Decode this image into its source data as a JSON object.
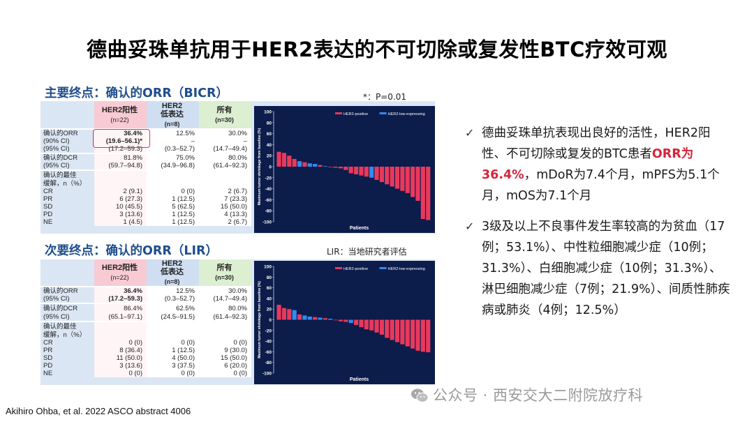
{
  "title": "德曲妥珠单抗用于HER2表达的不可切除或复发性BTC疗效可观",
  "primary": {
    "heading": "主要终点：确认的ORR（BICR）",
    "note": "*：P=0.01",
    "columns": [
      {
        "name": "HER2阳性",
        "n": "(n=22)"
      },
      {
        "name": "HER2\n低表达",
        "n": "(n=8)"
      },
      {
        "name": "所有",
        "n": "(n=30)"
      }
    ],
    "orr_label": "确认的ORR",
    "orr_ci90": "(90% CI)",
    "orr_ci95": "(95% CI)",
    "orr_pos": "36.4%",
    "orr_pos_ci90": "(19.6–56.1)*",
    "orr_pos_ci95": "(17.2–59.3)",
    "orr_low": "12.5%",
    "orr_low_ci90": "–",
    "orr_low_ci95": "(0.3–52.7)",
    "orr_all": "30.0%",
    "orr_all_ci90": "–",
    "orr_all_ci95": "(14.7–49.4)",
    "dcr_label": "确认的DCR",
    "dcr_ci": "(95% CI)",
    "dcr_pos": "81.8%",
    "dcr_pos_ci": "(59.7–94.8)",
    "dcr_low": "75.0%",
    "dcr_low_ci": "(34.9–96.8)",
    "dcr_all": "80.0%",
    "dcr_all_ci": "(61.4–92.3)",
    "best_label_1": "确认的最佳",
    "best_label_2": "缓解，n（%）",
    "best_rows": [
      {
        "label": "CR",
        "pos": "2 (9.1)",
        "low": "0 (0)",
        "all": "2 (6.7)"
      },
      {
        "label": "PR",
        "pos": "6 (27.3)",
        "low": "1 (12.5)",
        "all": "7 (23.3)"
      },
      {
        "label": "SD",
        "pos": "10 (45.5)",
        "low": "5 (62.5)",
        "all": "15 (50.0)"
      },
      {
        "label": "PD",
        "pos": "3 (13.6)",
        "low": "1 (12.5)",
        "all": "4 (13.3)"
      },
      {
        "label": "NE",
        "pos": "1 (4.5)",
        "low": "1 (12.5)",
        "all": "2 (6.7)"
      }
    ]
  },
  "secondary": {
    "heading": "次要终点：确认的ORR（LIR）",
    "note": "LIR：当地研究者评估",
    "columns": [
      {
        "name": "HER2阳性",
        "n": "(n=22)"
      },
      {
        "name": "HER2\n低表达",
        "n": "(n=8)"
      },
      {
        "name": "所有",
        "n": "(n=30)"
      }
    ],
    "orr_label": "确认的ORR",
    "orr_ci95": "(95% CI)",
    "orr_pos": "36.4%",
    "orr_pos_ci95": "(17.2–59.3)",
    "orr_low": "12.5%",
    "orr_low_ci95": "(0.3–52.7)",
    "orr_all": "30.0%",
    "orr_all_ci95": "(14.7–49.4)",
    "dcr_label": "确认的DCR",
    "dcr_ci": "(95% CI)",
    "dcr_pos": "86.4%",
    "dcr_pos_ci": "(65.1–97.1)",
    "dcr_low": "62.5%",
    "dcr_low_ci": "(24.5–91.5)",
    "dcr_all": "80.0%",
    "dcr_all_ci": "(61.4–92.3)",
    "best_label_1": "确认的最佳",
    "best_label_2": "缓解，n（%）",
    "best_rows": [
      {
        "label": "CR",
        "pos": "0 (0)",
        "low": "0 (0)",
        "all": "0 (0)"
      },
      {
        "label": "PR",
        "pos": "8 (36.4)",
        "low": "1 (12.5)",
        "all": "9 (30.0)"
      },
      {
        "label": "SD",
        "pos": "11 (50.0)",
        "low": "4 (50.0)",
        "all": "15 (50.0)"
      },
      {
        "label": "PD",
        "pos": "3 (13.6)",
        "low": "3 (37.5)",
        "all": "6 (20.0)"
      },
      {
        "label": "NE",
        "pos": "0 (0)",
        "low": "0 (0)",
        "all": "0 (0)"
      }
    ]
  },
  "chart_data": [
    {
      "type": "bar",
      "title": "",
      "xlabel": "Patients",
      "ylabel": "Maximum tumor shrinkage from baseline (%)",
      "ylim": [
        -100,
        100
      ],
      "yticks": [
        100,
        80,
        60,
        40,
        20,
        0,
        -20,
        -40,
        -60,
        -80,
        -100
      ],
      "legend": [
        "HER2-positive",
        "HER2-low-expressing"
      ],
      "legend_position": "top",
      "colors": {
        "HER2-positive": "#e8395c",
        "HER2-low-expressing": "#2f8cf0"
      },
      "values": [
        27,
        25,
        20,
        14,
        10,
        8,
        6,
        5,
        3,
        1,
        0,
        -2,
        -3,
        -6,
        -12,
        -14,
        -16,
        -18,
        -20,
        -24,
        -28,
        -32,
        -36,
        -40,
        -44,
        -48,
        -55,
        -62,
        -95,
        -97
      ],
      "groups": [
        "HER2-positive",
        "HER2-positive",
        "HER2-positive",
        "HER2-positive",
        "HER2-low-expressing",
        "HER2-positive",
        "HER2-low-expressing",
        "HER2-low-expressing",
        "HER2-positive",
        "HER2-low-expressing",
        "HER2-positive",
        "HER2-positive",
        "HER2-positive",
        "HER2-positive",
        "HER2-positive",
        "HER2-positive",
        "HER2-positive",
        "HER2-positive",
        "HER2-low-expressing",
        "HER2-positive",
        "HER2-positive",
        "HER2-positive",
        "HER2-positive",
        "HER2-positive",
        "HER2-positive",
        "HER2-positive",
        "HER2-positive",
        "HER2-positive",
        "HER2-positive",
        "HER2-positive"
      ]
    },
    {
      "type": "bar",
      "title": "",
      "xlabel": "Patients",
      "ylabel": "Maximum tumor shrinkage from baseline (%)",
      "ylim": [
        -100,
        100
      ],
      "yticks": [
        100,
        80,
        60,
        40,
        20,
        0,
        -20,
        -40,
        -60,
        -80,
        -100
      ],
      "legend": [
        "HER2-positive",
        "HER2-low-expressing"
      ],
      "legend_position": "top",
      "colors": {
        "HER2-positive": "#e8395c",
        "HER2-low-expressing": "#2f8cf0"
      },
      "values": [
        28,
        22,
        20,
        18,
        10,
        8,
        6,
        5,
        4,
        3,
        2,
        0,
        -3,
        -4,
        -6,
        -10,
        -14,
        -18,
        -20,
        -24,
        -28,
        -34,
        -38,
        -42,
        -46,
        -50,
        -54,
        -58,
        -60,
        -61
      ],
      "groups": [
        "HER2-positive",
        "HER2-positive",
        "HER2-positive",
        "HER2-low-expressing",
        "HER2-positive",
        "HER2-low-expressing",
        "HER2-low-expressing",
        "HER2-positive",
        "HER2-low-expressing",
        "HER2-positive",
        "HER2-low-expressing",
        "HER2-positive",
        "HER2-positive",
        "HER2-positive",
        "HER2-low-expressing",
        "HER2-positive",
        "HER2-positive",
        "HER2-positive",
        "HER2-positive",
        "HER2-positive",
        "HER2-positive",
        "HER2-positive",
        "HER2-positive",
        "HER2-positive",
        "HER2-positive",
        "HER2-positive",
        "HER2-positive",
        "HER2-positive",
        "HER2-positive",
        "HER2-positive"
      ]
    }
  ],
  "bullets": [
    {
      "pre": "德曲妥珠单抗表现出良好的活性，HER2阳性、不可切除或复发的BTC患者",
      "highlight": "ORR为36.4%",
      "post": "，mDoR为7.4个月，mPFS为5.1个月，mOS为7.1个月"
    },
    {
      "pre": "3级及以上不良事件发生率较高的为贫血（17例；53.1%）、中性粒细胞减少症（10例；31.3%）、白细胞减少症（10例；31.3%）、淋巴细胞减少症（7例；21.9%）、间质性肺疾病或肺炎（4例；12.5%）",
      "highlight": "",
      "post": ""
    }
  ],
  "footer": "Akihiro Ohba, et al. 2022 ASCO abstract 4006",
  "watermark": "公众号 · 西安交大二附院放疗科",
  "check_symbol": "✓"
}
